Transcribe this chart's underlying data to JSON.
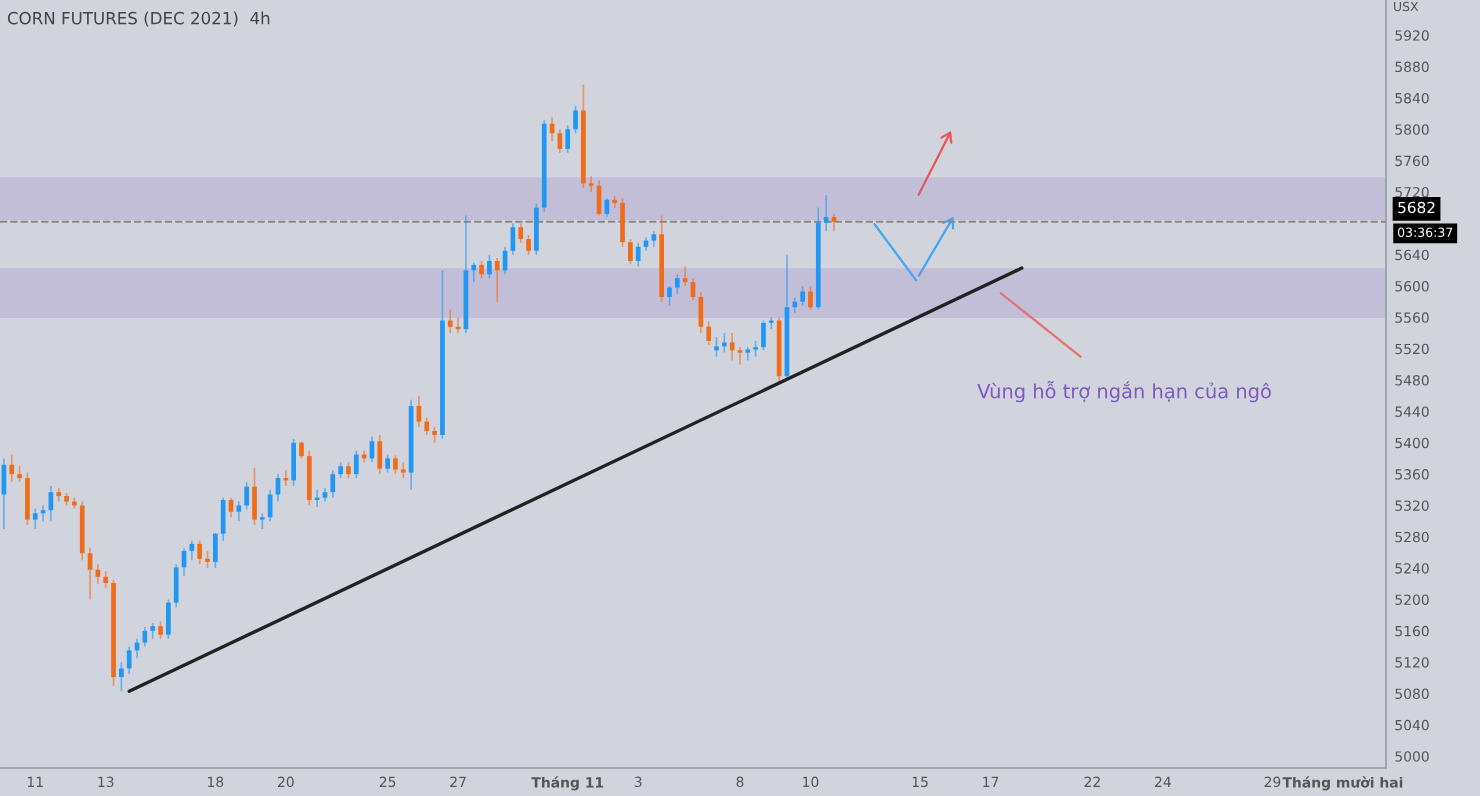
{
  "chart_data": {
    "type": "candlestick",
    "title": "CORN FUTURES (DEC 2021)  4h",
    "ylabel": "USX",
    "categories": [
      null,
      null,
      null,
      null,
      "11",
      null,
      null,
      null,
      null,
      null,
      null,
      null,
      null,
      "13",
      null,
      null,
      null,
      null,
      null,
      null,
      null,
      null,
      null,
      null,
      null,
      null,
      null,
      "18",
      null,
      null,
      null,
      null,
      null,
      null,
      null,
      null,
      "20",
      null,
      null,
      null,
      null,
      null,
      null,
      null,
      null,
      null,
      null,
      null,
      null,
      "25",
      null,
      null,
      null,
      null,
      null,
      null,
      null,
      null,
      "27",
      null,
      null,
      null,
      null,
      null,
      null,
      null,
      null,
      null,
      null,
      null,
      null,
      null,
      "Tháng 11",
      null,
      null,
      null,
      null,
      null,
      null,
      null,
      null,
      "3",
      null,
      null,
      null,
      null,
      null,
      null,
      null,
      null,
      null,
      null,
      null,
      null,
      "8",
      null,
      null,
      null,
      null,
      null,
      null,
      null,
      null,
      "10",
      null,
      null,
      null,
      null,
      null,
      null,
      null,
      null,
      null,
      null,
      null,
      null,
      null,
      "15",
      null,
      null,
      null,
      null,
      null,
      null,
      null,
      null,
      "17",
      null,
      null,
      null,
      null,
      null,
      null,
      null,
      null,
      null,
      null,
      null,
      null,
      "22",
      null,
      null,
      null,
      null,
      null,
      null,
      null,
      null,
      "24",
      null,
      null,
      null,
      null,
      null,
      null,
      null,
      null,
      null,
      null,
      null,
      null,
      null,
      "29",
      null,
      null,
      null,
      null,
      null,
      null,
      null,
      null,
      "Tháng mười hai",
      null,
      null,
      null,
      null,
      null
    ],
    "ohlc": [
      [
        5334,
        5380,
        5290,
        5372
      ],
      [
        5372,
        5385,
        5350,
        5360
      ],
      [
        5360,
        5370,
        5350,
        5355
      ],
      [
        5355,
        5362,
        5295,
        5302
      ],
      [
        5302,
        5316,
        5290,
        5310
      ],
      [
        5310,
        5320,
        5300,
        5314
      ],
      [
        5314,
        5345,
        5300,
        5337
      ],
      [
        5337,
        5342,
        5325,
        5332
      ],
      [
        5332,
        5336,
        5320,
        5325
      ],
      [
        5325,
        5330,
        5316,
        5320
      ],
      [
        5320,
        5325,
        5250,
        5259
      ],
      [
        5259,
        5266,
        5200,
        5238
      ],
      [
        5238,
        5245,
        5220,
        5229
      ],
      [
        5229,
        5236,
        5215,
        5221
      ],
      [
        5221,
        5225,
        5090,
        5101
      ],
      [
        5101,
        5120,
        5083,
        5112
      ],
      [
        5112,
        5140,
        5105,
        5135
      ],
      [
        5135,
        5150,
        5125,
        5145
      ],
      [
        5145,
        5165,
        5140,
        5160
      ],
      [
        5160,
        5170,
        5150,
        5166
      ],
      [
        5166,
        5172,
        5150,
        5155
      ],
      [
        5155,
        5200,
        5150,
        5196
      ],
      [
        5196,
        5245,
        5190,
        5241
      ],
      [
        5241,
        5265,
        5230,
        5262
      ],
      [
        5262,
        5275,
        5250,
        5271
      ],
      [
        5271,
        5275,
        5245,
        5252
      ],
      [
        5252,
        5262,
        5240,
        5248
      ],
      [
        5248,
        5285,
        5240,
        5284
      ],
      [
        5284,
        5330,
        5275,
        5327
      ],
      [
        5327,
        5330,
        5305,
        5312
      ],
      [
        5312,
        5325,
        5300,
        5320
      ],
      [
        5320,
        5350,
        5315,
        5344
      ],
      [
        5344,
        5368,
        5295,
        5302
      ],
      [
        5302,
        5310,
        5290,
        5305
      ],
      [
        5305,
        5340,
        5300,
        5334
      ],
      [
        5334,
        5360,
        5325,
        5355
      ],
      [
        5355,
        5365,
        5345,
        5352
      ],
      [
        5352,
        5405,
        5345,
        5400
      ],
      [
        5400,
        5402,
        5380,
        5383
      ],
      [
        5383,
        5390,
        5320,
        5327
      ],
      [
        5327,
        5340,
        5318,
        5330
      ],
      [
        5330,
        5342,
        5325,
        5337
      ],
      [
        5337,
        5365,
        5330,
        5360
      ],
      [
        5360,
        5375,
        5355,
        5370
      ],
      [
        5370,
        5375,
        5355,
        5360
      ],
      [
        5360,
        5390,
        5355,
        5385
      ],
      [
        5385,
        5390,
        5375,
        5380
      ],
      [
        5380,
        5408,
        5375,
        5402
      ],
      [
        5402,
        5410,
        5360,
        5367
      ],
      [
        5367,
        5385,
        5362,
        5380
      ],
      [
        5380,
        5384,
        5360,
        5366
      ],
      [
        5366,
        5375,
        5355,
        5362
      ],
      [
        5362,
        5455,
        5340,
        5447
      ],
      [
        5447,
        5460,
        5420,
        5427
      ],
      [
        5427,
        5432,
        5410,
        5415
      ],
      [
        5415,
        5420,
        5400,
        5410
      ],
      [
        5410,
        5620,
        5405,
        5556
      ],
      [
        5556,
        5570,
        5540,
        5548
      ],
      [
        5548,
        5560,
        5540,
        5545
      ],
      [
        5545,
        5690,
        5540,
        5620
      ],
      [
        5620,
        5630,
        5605,
        5627
      ],
      [
        5627,
        5632,
        5610,
        5615
      ],
      [
        5615,
        5640,
        5610,
        5632
      ],
      [
        5632,
        5636,
        5580,
        5620
      ],
      [
        5620,
        5650,
        5615,
        5645
      ],
      [
        5645,
        5680,
        5640,
        5675
      ],
      [
        5675,
        5680,
        5655,
        5660
      ],
      [
        5660,
        5665,
        5640,
        5645
      ],
      [
        5645,
        5705,
        5640,
        5700
      ],
      [
        5700,
        5812,
        5695,
        5807
      ],
      [
        5807,
        5815,
        5785,
        5795
      ],
      [
        5795,
        5800,
        5770,
        5775
      ],
      [
        5775,
        5805,
        5770,
        5800
      ],
      [
        5800,
        5830,
        5795,
        5824
      ],
      [
        5824,
        5857,
        5725,
        5731
      ],
      [
        5731,
        5740,
        5720,
        5728
      ],
      [
        5728,
        5735,
        5690,
        5692
      ],
      [
        5692,
        5712,
        5688,
        5710
      ],
      [
        5710,
        5715,
        5700,
        5706
      ],
      [
        5706,
        5712,
        5650,
        5656
      ],
      [
        5656,
        5660,
        5628,
        5632
      ],
      [
        5632,
        5655,
        5625,
        5650
      ],
      [
        5650,
        5662,
        5645,
        5658
      ],
      [
        5658,
        5670,
        5650,
        5666
      ],
      [
        5666,
        5690,
        5580,
        5586
      ],
      [
        5586,
        5600,
        5575,
        5598
      ],
      [
        5598,
        5615,
        5590,
        5610
      ],
      [
        5610,
        5625,
        5600,
        5605
      ],
      [
        5605,
        5610,
        5582,
        5586
      ],
      [
        5586,
        5592,
        5540,
        5548
      ],
      [
        5548,
        5555,
        5525,
        5530
      ],
      [
        5518,
        5535,
        5510,
        5523
      ],
      [
        5523,
        5540,
        5515,
        5528
      ],
      [
        5528,
        5540,
        5505,
        5518
      ],
      [
        5518,
        5522,
        5500,
        5515
      ],
      [
        5515,
        5522,
        5505,
        5519
      ],
      [
        5519,
        5530,
        5510,
        5522
      ],
      [
        5522,
        5556,
        5518,
        5553
      ],
      [
        5553,
        5560,
        5545,
        5556
      ],
      [
        5556,
        5560,
        5478,
        5485
      ],
      [
        5485,
        5640,
        5480,
        5573
      ],
      [
        5573,
        5585,
        5565,
        5580
      ],
      [
        5580,
        5600,
        5575,
        5593
      ],
      [
        5593,
        5600,
        5570,
        5573
      ],
      [
        5573,
        5700,
        5570,
        5681
      ],
      [
        5681,
        5716,
        5670,
        5688
      ],
      [
        5688,
        5692,
        5670,
        5682
      ],
      null,
      null,
      null,
      null,
      null,
      null,
      null,
      null,
      null,
      null,
      null,
      null,
      null,
      null,
      null,
      null,
      null,
      null,
      null,
      null,
      null,
      null,
      null,
      null,
      null,
      null,
      null,
      null,
      null,
      null,
      null,
      null,
      null,
      null,
      null,
      null,
      null,
      null,
      null,
      null,
      null,
      null,
      null,
      null,
      null,
      null,
      null,
      null,
      null,
      null,
      null,
      null,
      null,
      null,
      null,
      null,
      null,
      null,
      null,
      null,
      null,
      null,
      null,
      null,
      null,
      null,
      null,
      null,
      null,
      null
    ],
    "colors": [
      "#2196f3",
      "#ef6c1a",
      "#ef6c1a",
      "#ef6c1a",
      "#2196f3",
      "#2196f3",
      "#2196f3",
      "#ef6c1a",
      "#ef6c1a",
      "#ef6c1a",
      "#ef6c1a",
      "#ef6c1a",
      "#ef6c1a",
      "#ef6c1a",
      "#ef6c1a",
      "#2196f3",
      "#2196f3",
      "#2196f3",
      "#2196f3",
      "#2196f3",
      "#ef6c1a",
      "#2196f3",
      "#2196f3",
      "#2196f3",
      "#2196f3",
      "#ef6c1a",
      "#ef6c1a",
      "#2196f3",
      "#2196f3",
      "#ef6c1a",
      "#2196f3",
      "#2196f3",
      "#ef6c1a",
      "#2196f3",
      "#2196f3",
      "#2196f3",
      "#ef6c1a",
      "#2196f3",
      "#ef6c1a",
      "#ef6c1a",
      "#2196f3",
      "#2196f3",
      "#2196f3",
      "#2196f3",
      "#ef6c1a",
      "#2196f3",
      "#ef6c1a",
      "#2196f3",
      "#ef6c1a",
      "#2196f3",
      "#ef6c1a",
      "#ef6c1a",
      "#2196f3",
      "#ef6c1a",
      "#ef6c1a",
      "#ef6c1a",
      "#2196f3",
      "#ef6c1a",
      "#ef6c1a",
      "#2196f3",
      "#2196f3",
      "#ef6c1a",
      "#2196f3",
      "#ef6c1a",
      "#2196f3",
      "#2196f3",
      "#ef6c1a",
      "#ef6c1a",
      "#2196f3",
      "#2196f3",
      "#ef6c1a",
      "#ef6c1a",
      "#2196f3",
      "#2196f3",
      "#ef6c1a",
      "#ef6c1a",
      "#ef6c1a",
      "#2196f3",
      "#ef6c1a",
      "#ef6c1a",
      "#ef6c1a",
      "#2196f3",
      "#2196f3",
      "#2196f3",
      "#ef6c1a",
      "#2196f3",
      "#2196f3",
      "#ef6c1a",
      "#ef6c1a",
      "#ef6c1a",
      "#ef6c1a",
      "#2196f3",
      "#2196f3",
      "#ef6c1a",
      "#ef6c1a",
      "#2196f3",
      "#2196f3",
      "#2196f3",
      "#2196f3",
      "#ef6c1a",
      "#2196f3",
      "#2196f3",
      "#2196f3",
      "#ef6c1a",
      "#2196f3",
      "#2196f3",
      "#ef6c1a",
      null,
      null,
      null,
      null,
      null,
      null,
      null,
      null,
      null,
      null,
      null,
      null,
      null,
      null,
      null,
      null,
      null,
      null,
      null,
      null,
      null,
      null,
      null,
      null,
      null,
      null,
      null,
      null,
      null,
      null,
      null,
      null,
      null,
      null,
      null,
      null,
      null,
      null,
      null,
      null,
      null,
      null,
      null,
      null,
      null,
      null,
      null,
      null,
      null,
      null,
      null,
      null,
      null,
      null,
      null,
      null,
      null,
      null,
      null,
      null,
      null,
      null,
      null,
      null,
      null,
      null,
      null,
      null,
      null,
      null
    ],
    "series": [
      {
        "type": "line",
        "color": "#222222",
        "values": [
          null,
          null,
          null,
          null,
          null,
          null,
          null,
          null,
          null,
          null,
          null,
          null,
          null,
          null,
          null,
          null,
          5083,
          null,
          null,
          null,
          null,
          null,
          null,
          null,
          null,
          null,
          null,
          null,
          null,
          null,
          null,
          null,
          null,
          null,
          null,
          null,
          null,
          null,
          null,
          null,
          null,
          null,
          null,
          null,
          null,
          null,
          null,
          null,
          null,
          null,
          null,
          null,
          null,
          null,
          null,
          null,
          null,
          null,
          null,
          null,
          null,
          null,
          null,
          null,
          null,
          null,
          null,
          null,
          null,
          null,
          null,
          null,
          null,
          null,
          null,
          null,
          null,
          null,
          null,
          null,
          null,
          null,
          null,
          null,
          null,
          null,
          null,
          null,
          null,
          null,
          null,
          null,
          null,
          null,
          null,
          null,
          null,
          null,
          null,
          null,
          null,
          null,
          null,
          null,
          null,
          null,
          null,
          null,
          null,
          null,
          null,
          null,
          null,
          null,
          null,
          null,
          null,
          null,
          null,
          null,
          null,
          null,
          null,
          null,
          null,
          null,
          null,
          null,
          null,
          null,
          5623,
          null,
          null,
          null,
          null,
          null,
          null,
          null,
          null,
          null,
          null,
          null,
          null,
          null,
          null,
          null,
          null,
          null,
          null,
          null,
          null,
          null,
          null,
          null,
          null,
          null,
          null,
          null,
          null,
          null,
          null,
          null,
          null,
          null,
          null,
          null,
          null,
          null,
          null,
          null,
          null,
          null,
          null,
          null,
          null,
          null,
          null
        ]
      }
    ],
    "ylim": [
      4985,
      5965
    ],
    "yticks": [
      5000,
      5040,
      5080,
      5120,
      5160,
      5200,
      5240,
      5280,
      5320,
      5360,
      5400,
      5440,
      5480,
      5520,
      5560,
      5600,
      5640,
      5720,
      5760,
      5800,
      5840,
      5880,
      5920
    ],
    "bands": [
      {
        "axis": "y",
        "from": 5686,
        "to": 5737,
        "color": "#9575cd"
      },
      {
        "axis": "y",
        "from": 5561,
        "to": 5621,
        "color": "#9575cd"
      }
    ],
    "ref_lines": [
      {
        "axis": "y",
        "value": 5682,
        "label": "5682",
        "color": "#888888",
        "line_style": "dashed"
      }
    ],
    "annotations": [
      "Vùng hỗ trợ ngắn hạn của ngô",
      "03:36:37"
    ],
    "grid": false,
    "legend": false
  }
}
